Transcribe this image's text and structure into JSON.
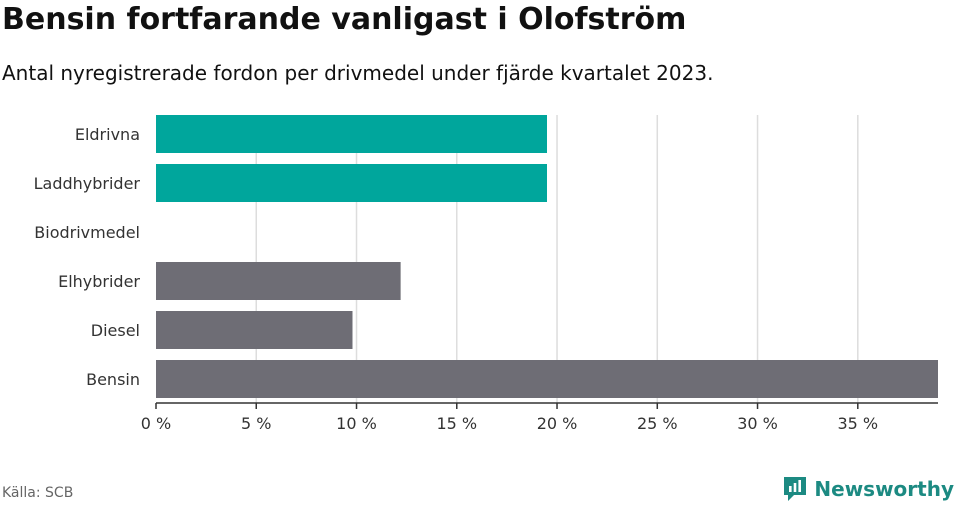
{
  "header": {
    "title": "Bensin fortfarande vanligast i Olofström",
    "subtitle": "Antal nyregistrerade fordon per drivmedel under fjärde kvartalet 2023."
  },
  "footer": {
    "source": "Källa: SCB",
    "brand": "Newsworthy"
  },
  "colors": {
    "highlight": "#00a69c",
    "default": "#6e6d75",
    "grid": "#dddddd",
    "brand": "#1c8a82"
  },
  "chart_data": {
    "type": "bar",
    "orientation": "horizontal",
    "title": "Bensin fortfarande vanligast i Olofström",
    "subtitle": "Antal nyregistrerade fordon per drivmedel under fjärde kvartalet 2023.",
    "categories": [
      "Eldrivna",
      "Laddhybrider",
      "Biodrivmedel",
      "Elhybrider",
      "Diesel",
      "Bensin"
    ],
    "values": [
      19.5,
      19.5,
      0,
      12.2,
      9.8,
      39
    ],
    "highlighted": [
      true,
      true,
      false,
      false,
      false,
      false
    ],
    "xlim": [
      0,
      39
    ],
    "xticks": [
      0,
      5,
      10,
      15,
      20,
      25,
      30,
      35
    ],
    "xtick_labels": [
      "0 %",
      "5 %",
      "10 %",
      "15 %",
      "20 %",
      "25 %",
      "30 %",
      "35 %"
    ],
    "xlabel": "",
    "ylabel": "",
    "grid": true
  }
}
